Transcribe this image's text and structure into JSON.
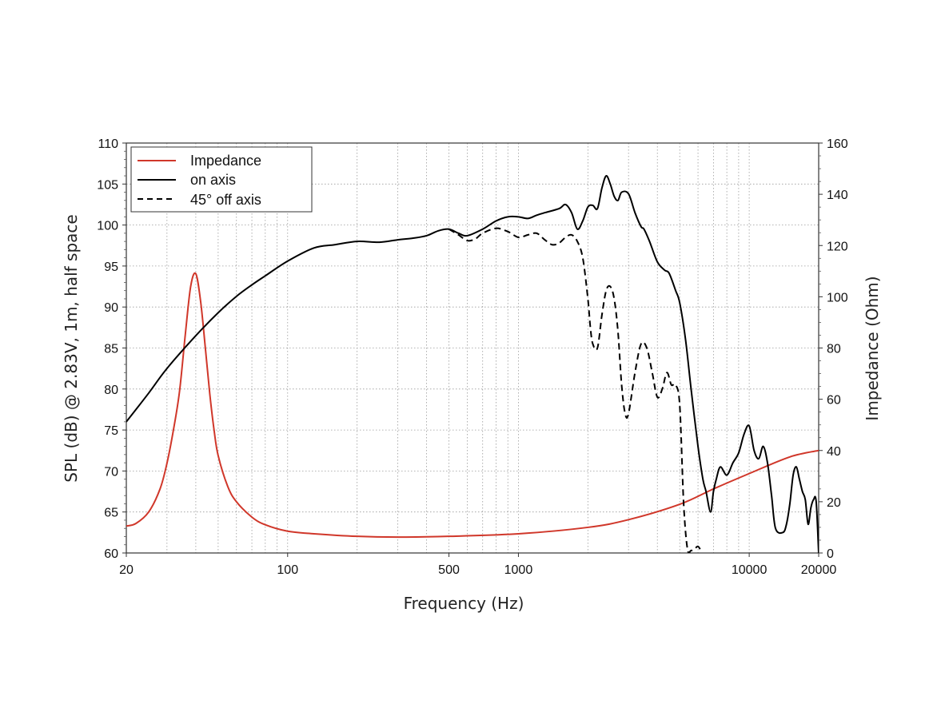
{
  "chart_data": {
    "type": "line",
    "xlabel": "Frequency (Hz)",
    "ylabel_left": "SPL (dB) @ 2.83V, 1m, half space",
    "ylabel_right": "Impedance (Ohm)",
    "x_scale": "log",
    "xlim": [
      20,
      20000
    ],
    "ylim_left": [
      60,
      110
    ],
    "ylim_right": [
      0,
      160
    ],
    "x_ticks": [
      20,
      100,
      500,
      1000,
      10000,
      20000
    ],
    "x_tick_labels": [
      "20",
      "100",
      "500",
      "1000",
      "10000",
      "20000"
    ],
    "y_left_ticks": [
      60,
      65,
      70,
      75,
      80,
      85,
      90,
      95,
      100,
      105,
      110
    ],
    "y_right_ticks": [
      0,
      20,
      40,
      60,
      80,
      100,
      120,
      140,
      160
    ],
    "grid": true,
    "legend_position": "top-left",
    "colors": {
      "impedance": "#d0372a",
      "on_axis": "#000000",
      "off_axis": "#000000"
    },
    "series": [
      {
        "name": "Impedance",
        "axis": "right",
        "style": "solid",
        "color": "#d0372a",
        "x": [
          20,
          22,
          25,
          28,
          30,
          32,
          34,
          36,
          38,
          40,
          42,
          44,
          46,
          48,
          50,
          55,
          60,
          70,
          80,
          100,
          130,
          200,
          300,
          500,
          1000,
          2000,
          3000,
          5000,
          7000,
          10000,
          15000,
          20000
        ],
        "y": [
          10.5,
          11.5,
          16,
          25,
          35,
          48,
          63,
          85,
          104,
          109,
          98,
          80,
          62,
          48,
          38,
          26,
          20,
          14,
          11,
          8.5,
          7.5,
          6.5,
          6.2,
          6.5,
          7.5,
          10,
          13,
          19,
          25,
          31,
          37.5,
          40
        ]
      },
      {
        "name": "on axis",
        "axis": "left",
        "style": "solid",
        "color": "#000000",
        "x": [
          20,
          25,
          30,
          40,
          50,
          60,
          70,
          80,
          100,
          130,
          160,
          200,
          250,
          300,
          350,
          400,
          450,
          500,
          550,
          600,
          700,
          800,
          900,
          1000,
          1100,
          1200,
          1300,
          1500,
          1600,
          1700,
          1800,
          1900,
          2000,
          2100,
          2200,
          2300,
          2400,
          2500,
          2600,
          2700,
          2800,
          3000,
          3200,
          3400,
          3500,
          3700,
          4000,
          4300,
          4500,
          4800,
          5000,
          5300,
          5600,
          6000,
          6300,
          6500,
          6800,
          7000,
          7200,
          7500,
          8000,
          8500,
          9000,
          9500,
          10000,
          10500,
          11000,
          11500,
          12000,
          12500,
          13000,
          14000,
          14500,
          15000,
          15500,
          16000,
          16500,
          17000,
          17500,
          18000,
          18500,
          19000,
          19500,
          20000
        ],
        "y": [
          76,
          79.5,
          82.5,
          86.5,
          89.3,
          91.3,
          92.7,
          93.8,
          95.6,
          97.2,
          97.6,
          98,
          97.9,
          98.2,
          98.4,
          98.7,
          99.3,
          99.5,
          99,
          98.7,
          99.5,
          100.5,
          101,
          101,
          100.8,
          101.2,
          101.5,
          102,
          102.5,
          101.5,
          99.5,
          100.5,
          102.2,
          102.4,
          102,
          104.5,
          106,
          105,
          103.5,
          103,
          104,
          103.8,
          101.5,
          99.8,
          99.5,
          98,
          95.5,
          94.5,
          94.1,
          92,
          90.5,
          86,
          80,
          73,
          69,
          67.5,
          65,
          67.5,
          69,
          70.5,
          69.5,
          71,
          72.2,
          74.5,
          75.5,
          72.5,
          71.5,
          73,
          71,
          67,
          63,
          62.5,
          63.5,
          66,
          69.5,
          70.5,
          69,
          67.5,
          66.5,
          63.5,
          65.5,
          66.5,
          66.3,
          60
        ]
      },
      {
        "name": "45° off axis",
        "axis": "left",
        "style": "dashed",
        "color": "#000000",
        "x": [
          500,
          550,
          600,
          650,
          700,
          800,
          900,
          1000,
          1100,
          1200,
          1300,
          1400,
          1500,
          1600,
          1700,
          1800,
          1900,
          2000,
          2050,
          2100,
          2200,
          2300,
          2400,
          2500,
          2600,
          2700,
          2800,
          2900,
          3000,
          3200,
          3400,
          3600,
          3800,
          4000,
          4200,
          4400,
          4600,
          4800,
          5000,
          5200,
          5400,
          5600,
          5800,
          6000,
          6200
        ],
        "y": [
          99.5,
          98.8,
          98.1,
          98.3,
          99,
          99.6,
          99.2,
          98.5,
          98.8,
          99,
          98.2,
          97.6,
          97.8,
          98.5,
          98.8,
          98,
          96,
          91,
          87.5,
          85.5,
          85,
          89,
          92,
          92.5,
          91,
          87,
          80.5,
          77,
          77,
          82,
          85.5,
          85,
          82,
          79,
          80,
          82,
          80.5,
          80.5,
          78,
          66,
          60.5,
          60.3,
          60.5,
          60.8,
          60.2
        ]
      }
    ]
  }
}
